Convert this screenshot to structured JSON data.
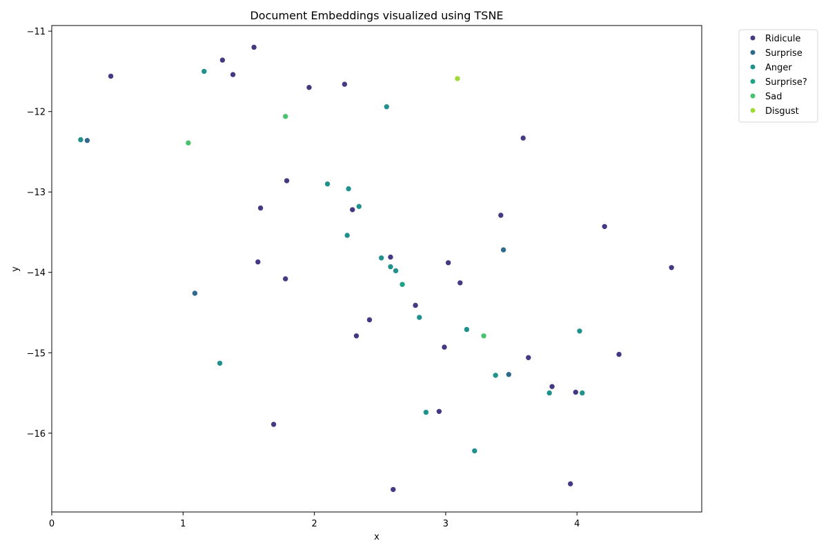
{
  "chart_data": {
    "type": "scatter",
    "title": "Document Embeddings visualized using TSNE",
    "xlabel": "x",
    "ylabel": "y",
    "xlim": [
      0,
      4.95
    ],
    "ylim": [
      -16.98,
      -10.93
    ],
    "xticks": [
      0,
      1,
      2,
      3,
      4
    ],
    "yticks": [
      -16,
      -15,
      -14,
      -13,
      -12,
      -11
    ],
    "grid": false,
    "legend_position": "outside-right",
    "series": [
      {
        "name": "Ridicule",
        "color": "#443983",
        "points": [
          [
            0.45,
            -11.56
          ],
          [
            1.3,
            -11.36
          ],
          [
            1.38,
            -11.54
          ],
          [
            1.54,
            -11.2
          ],
          [
            1.96,
            -11.7
          ],
          [
            2.23,
            -11.66
          ],
          [
            3.59,
            -12.33
          ],
          [
            1.79,
            -12.86
          ],
          [
            1.59,
            -13.2
          ],
          [
            2.29,
            -13.22
          ],
          [
            3.42,
            -13.29
          ],
          [
            4.21,
            -13.43
          ],
          [
            2.58,
            -13.81
          ],
          [
            1.57,
            -13.87
          ],
          [
            3.02,
            -13.88
          ],
          [
            4.72,
            -13.94
          ],
          [
            1.78,
            -14.08
          ],
          [
            3.11,
            -14.13
          ],
          [
            2.77,
            -14.41
          ],
          [
            2.42,
            -14.59
          ],
          [
            2.32,
            -14.79
          ],
          [
            2.99,
            -14.93
          ],
          [
            4.32,
            -15.02
          ],
          [
            3.63,
            -15.06
          ],
          [
            3.81,
            -15.42
          ],
          [
            3.99,
            -15.49
          ],
          [
            2.95,
            -15.73
          ],
          [
            1.69,
            -15.89
          ],
          [
            3.95,
            -16.63
          ],
          [
            2.6,
            -16.7
          ]
        ]
      },
      {
        "name": "Surprise",
        "color": "#31688e",
        "points": [
          [
            0.27,
            -12.36
          ],
          [
            3.44,
            -13.72
          ],
          [
            1.09,
            -14.26
          ],
          [
            3.48,
            -15.27
          ]
        ]
      },
      {
        "name": "Anger",
        "color": "#21918c",
        "points": [
          [
            1.16,
            -11.5
          ],
          [
            2.55,
            -11.94
          ],
          [
            0.22,
            -12.35
          ],
          [
            2.1,
            -12.9
          ],
          [
            2.26,
            -12.96
          ],
          [
            2.34,
            -13.18
          ],
          [
            2.25,
            -13.54
          ],
          [
            2.51,
            -13.82
          ],
          [
            2.58,
            -13.93
          ],
          [
            2.62,
            -13.98
          ],
          [
            2.8,
            -14.56
          ],
          [
            3.16,
            -14.71
          ],
          [
            4.02,
            -14.73
          ],
          [
            1.28,
            -15.13
          ],
          [
            3.38,
            -15.28
          ],
          [
            3.79,
            -15.5
          ],
          [
            4.04,
            -15.5
          ],
          [
            2.85,
            -15.74
          ],
          [
            3.22,
            -16.22
          ]
        ]
      },
      {
        "name": "Surprise?",
        "color": "#1fa187",
        "points": [
          [
            2.67,
            -14.15
          ]
        ]
      },
      {
        "name": "Sad",
        "color": "#4ac16d",
        "points": [
          [
            1.78,
            -12.06
          ],
          [
            1.04,
            -12.39
          ],
          [
            3.29,
            -14.79
          ]
        ]
      },
      {
        "name": "Disgust",
        "color": "#a0da39",
        "points": [
          [
            3.09,
            -11.59
          ]
        ]
      }
    ]
  }
}
